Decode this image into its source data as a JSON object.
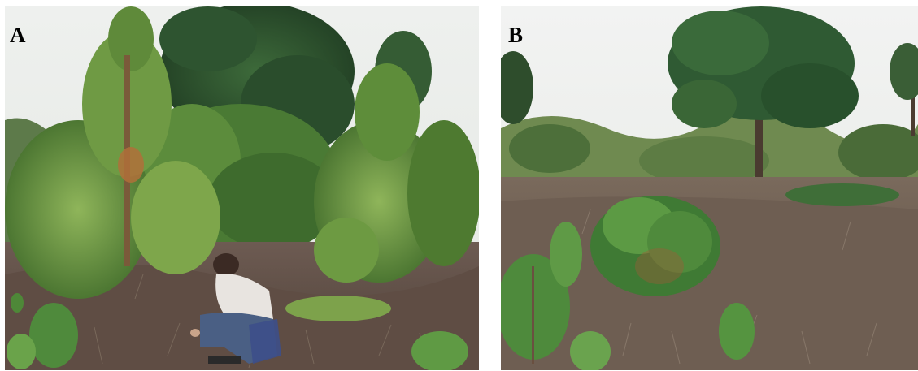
{
  "figure": {
    "panels": [
      {
        "label": "A",
        "scene": "pine-saplings-with-crouching-person"
      },
      {
        "label": "B",
        "scene": "shrub-in-grassland-with-pine-trees"
      }
    ]
  }
}
